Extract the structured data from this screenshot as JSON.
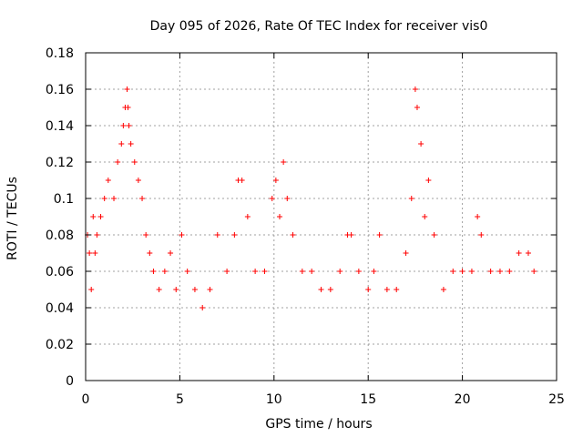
{
  "chart_data": {
    "type": "scatter",
    "title": "Day 095 of 2026, Rate Of TEC Index for receiver vis0",
    "xlabel": "GPS time / hours",
    "ylabel": "ROTI / TECUs",
    "xlim": [
      0,
      25
    ],
    "ylim": [
      0,
      0.18
    ],
    "x_ticks": [
      "0",
      "5",
      "10",
      "15",
      "20",
      "25"
    ],
    "y_ticks": [
      "0",
      "0.02",
      "0.04",
      "0.06",
      "0.08",
      "0.1",
      "0.12",
      "0.14",
      "0.16",
      "0.18"
    ],
    "grid": true,
    "marker": "plus",
    "color": "#ff0000",
    "series": [
      {
        "x": [
          0.1,
          0.2,
          0.3,
          0.4,
          0.5,
          0.6,
          0.8,
          1.0,
          1.2,
          1.5,
          1.7,
          1.9,
          2.0,
          2.1,
          2.2,
          2.25,
          2.3,
          2.4,
          2.6,
          2.8,
          3.0,
          3.2,
          3.4,
          3.6,
          3.9,
          4.2,
          4.5,
          4.8,
          5.1,
          5.4,
          5.8,
          6.2,
          6.6,
          7.0,
          7.5,
          7.9,
          8.1,
          8.3,
          8.6,
          9.0,
          9.5,
          9.9,
          10.1,
          10.3,
          10.5,
          10.7,
          11.0,
          11.5,
          12.0,
          12.5,
          13.0,
          13.5,
          13.9,
          14.1,
          14.5,
          15.0,
          15.3,
          15.6,
          16.0,
          16.5,
          17.0,
          17.3,
          17.5,
          17.6,
          17.8,
          18.0,
          18.2,
          18.5,
          19.0,
          19.5,
          20.0,
          20.5,
          20.8,
          21.0,
          21.5,
          22.0,
          22.5,
          23.0,
          23.5,
          23.8
        ],
        "y": [
          0.08,
          0.07,
          0.05,
          0.09,
          0.07,
          0.08,
          0.09,
          0.1,
          0.11,
          0.1,
          0.12,
          0.13,
          0.14,
          0.15,
          0.16,
          0.15,
          0.14,
          0.13,
          0.12,
          0.11,
          0.1,
          0.08,
          0.07,
          0.06,
          0.05,
          0.06,
          0.07,
          0.05,
          0.08,
          0.06,
          0.05,
          0.04,
          0.05,
          0.08,
          0.06,
          0.08,
          0.11,
          0.11,
          0.09,
          0.06,
          0.06,
          0.1,
          0.11,
          0.09,
          0.12,
          0.1,
          0.08,
          0.06,
          0.06,
          0.05,
          0.05,
          0.06,
          0.08,
          0.08,
          0.06,
          0.05,
          0.06,
          0.08,
          0.05,
          0.05,
          0.07,
          0.1,
          0.16,
          0.15,
          0.13,
          0.09,
          0.11,
          0.08,
          0.05,
          0.06,
          0.06,
          0.06,
          0.09,
          0.08,
          0.06,
          0.06,
          0.06,
          0.07,
          0.07,
          0.06
        ]
      }
    ]
  }
}
